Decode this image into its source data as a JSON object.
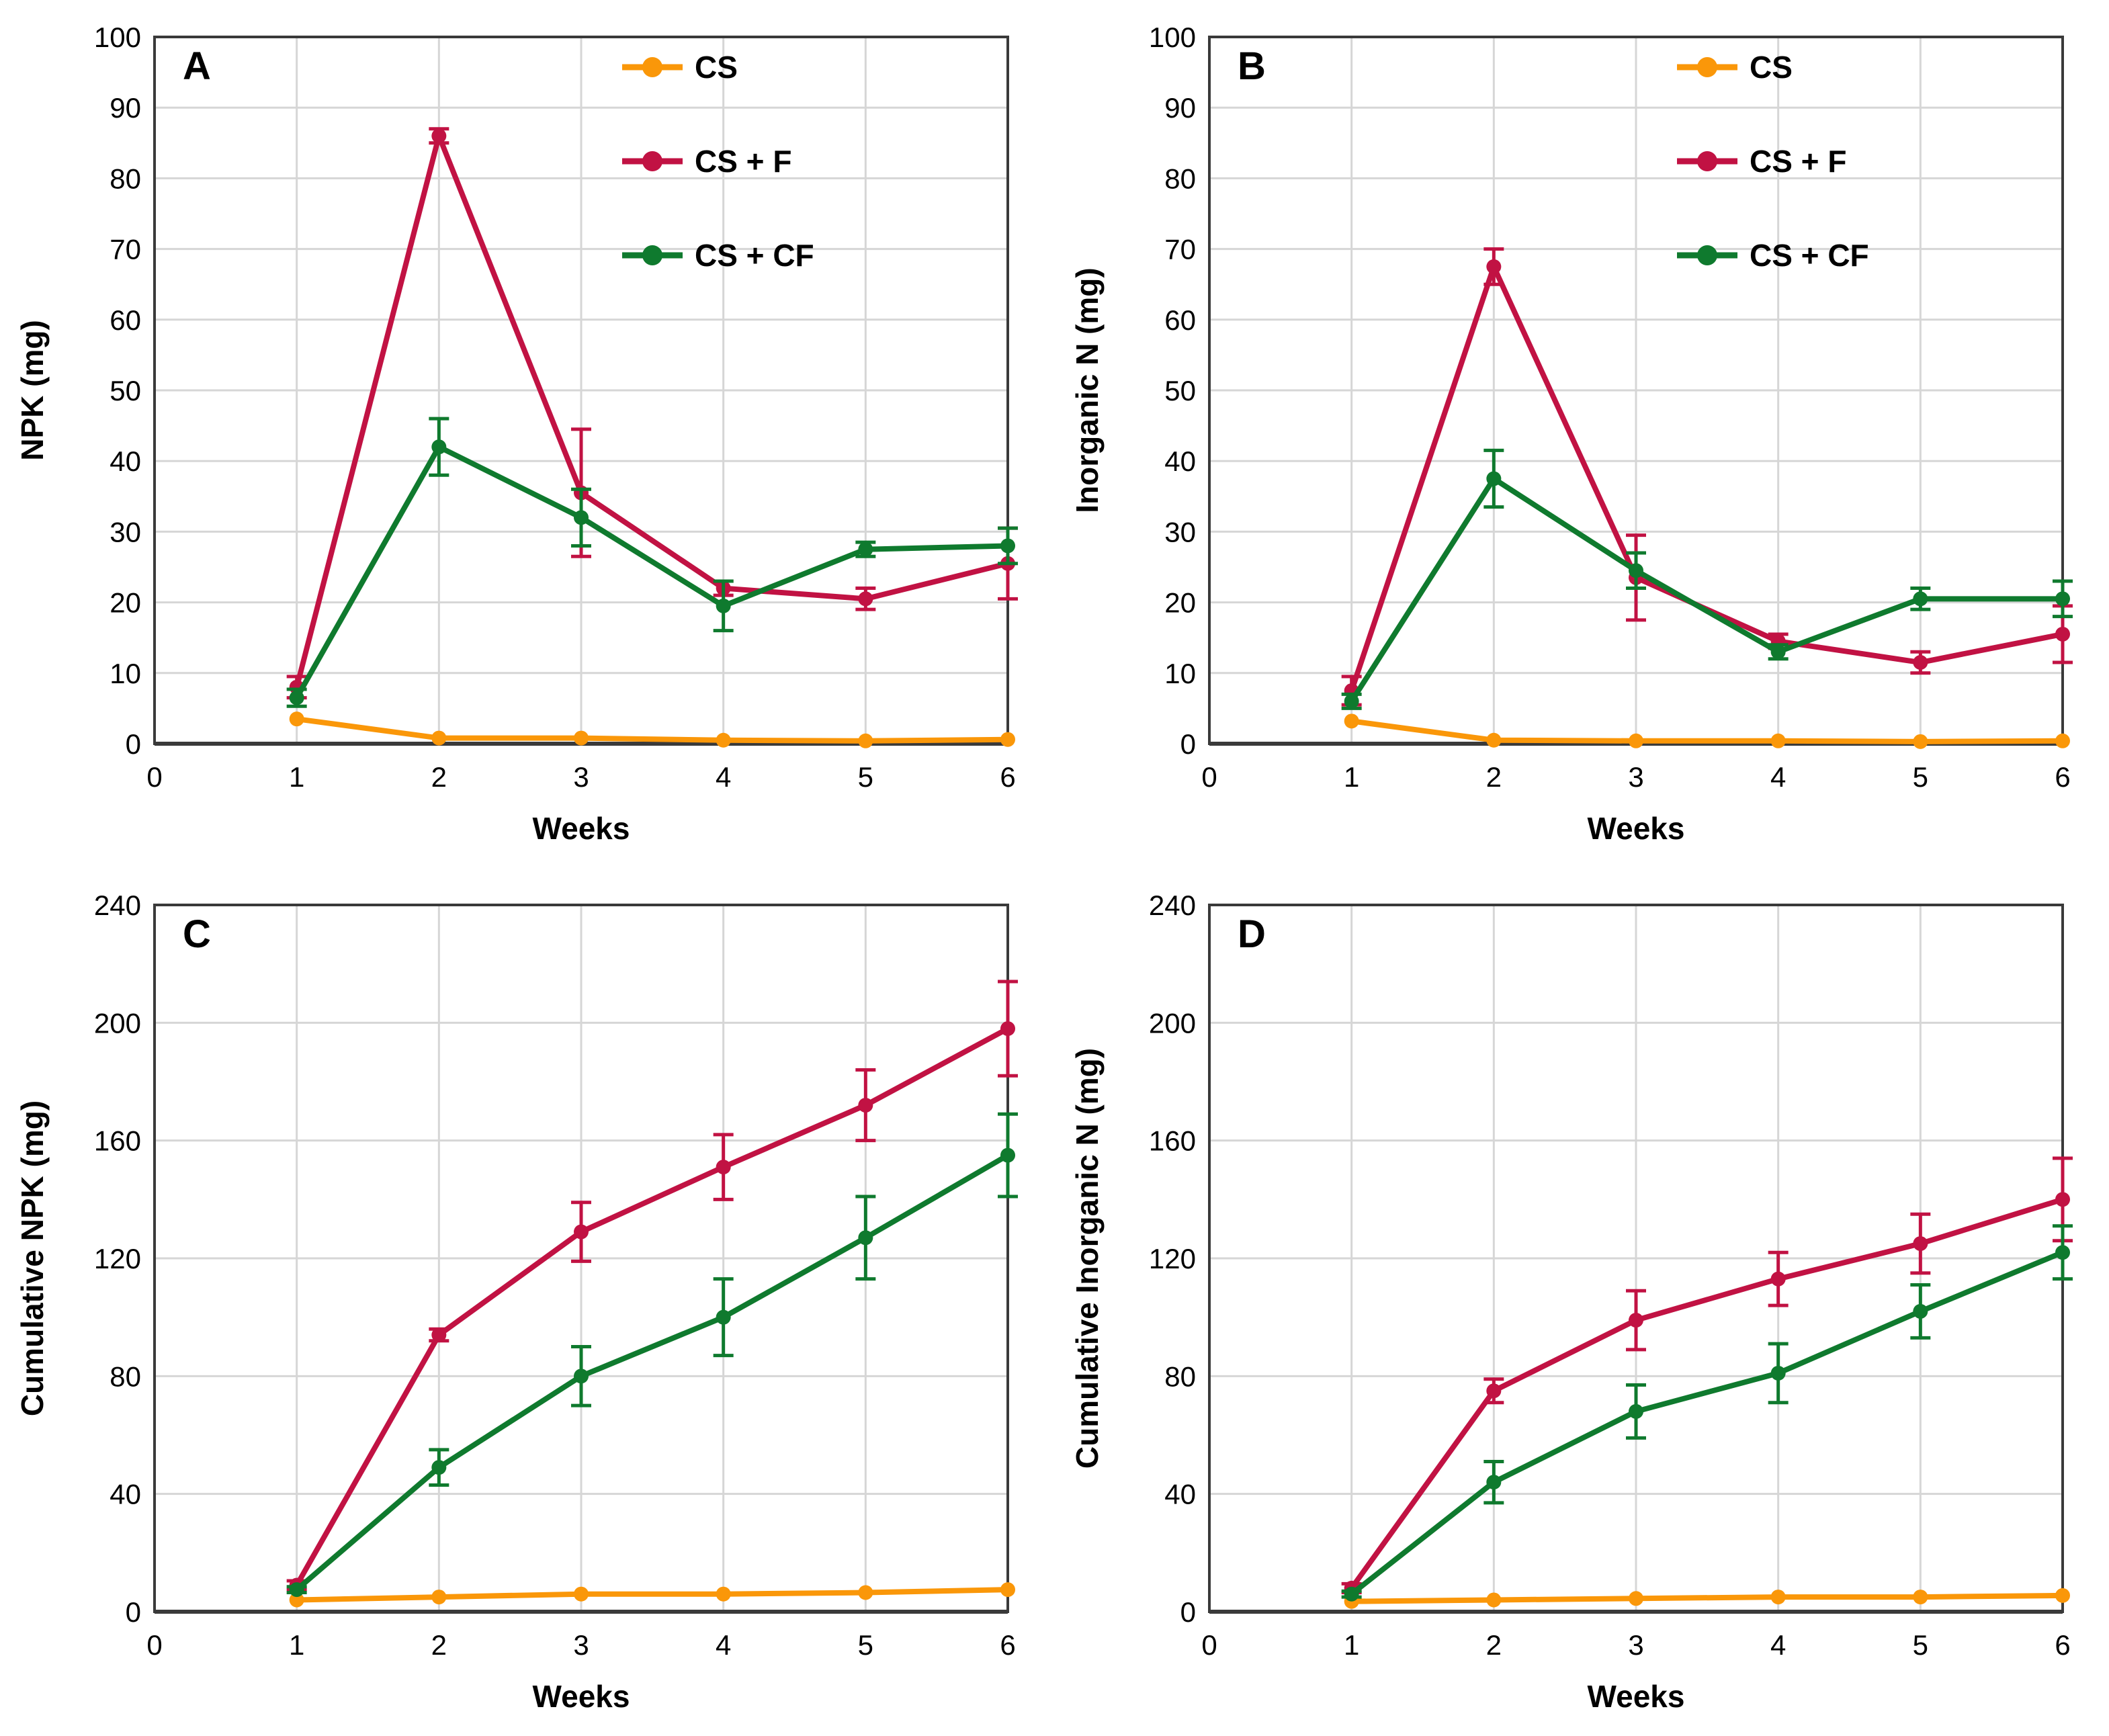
{
  "colors": {
    "background": "#FFFFFF",
    "grid": "#D6D6D6",
    "frame": "#3A3A3A",
    "text": "#000000",
    "cs_orange": "#FA9709",
    "csf_crimson": "#C11243",
    "cscf_green": "#0F7A2E"
  },
  "chart_data": [
    {
      "id": "A",
      "type": "line",
      "panel_label": "A",
      "xlabel": "Weeks",
      "ylabel": "NPK (mg)",
      "xlim": [
        0,
        6
      ],
      "ylim": [
        0,
        100
      ],
      "xticks": [
        0,
        1,
        2,
        3,
        4,
        5,
        6
      ],
      "yticks": [
        0,
        10,
        20,
        30,
        40,
        50,
        60,
        70,
        80,
        90,
        100
      ],
      "grid": true,
      "legend": {
        "show": true,
        "position": "top-right"
      },
      "x": [
        1,
        2,
        3,
        4,
        5,
        6
      ],
      "series": [
        {
          "name": "CS",
          "color": "#FA9709",
          "values": [
            3.5,
            0.8,
            0.8,
            0.5,
            0.4,
            0.6
          ],
          "errors": [
            0.4,
            0.3,
            0.3,
            0.2,
            0.2,
            0.3
          ]
        },
        {
          "name": "CS + F",
          "color": "#C11243",
          "values": [
            8,
            86,
            35.5,
            22,
            20.5,
            25.5
          ],
          "errors": [
            1.5,
            1,
            9,
            1,
            1.5,
            5
          ]
        },
        {
          "name": "CS + CF",
          "color": "#0F7A2E",
          "values": [
            6.5,
            42,
            32,
            19.5,
            27.5,
            28
          ],
          "errors": [
            1.2,
            4,
            4,
            3.5,
            1,
            2.5
          ]
        }
      ]
    },
    {
      "id": "B",
      "type": "line",
      "panel_label": "B",
      "xlabel": "Weeks",
      "ylabel": "Inorganic N (mg)",
      "xlim": [
        0,
        6
      ],
      "ylim": [
        0,
        100
      ],
      "xticks": [
        0,
        1,
        2,
        3,
        4,
        5,
        6
      ],
      "yticks": [
        0,
        10,
        20,
        30,
        40,
        50,
        60,
        70,
        80,
        90,
        100
      ],
      "grid": true,
      "legend": {
        "show": true,
        "position": "top-right"
      },
      "x": [
        1,
        2,
        3,
        4,
        5,
        6
      ],
      "series": [
        {
          "name": "CS",
          "color": "#FA9709",
          "values": [
            3.2,
            0.5,
            0.4,
            0.4,
            0.3,
            0.4
          ],
          "errors": [
            0.4,
            0.2,
            0.2,
            0.2,
            0.2,
            0.2
          ]
        },
        {
          "name": "CS + F",
          "color": "#C11243",
          "values": [
            7.5,
            67.5,
            23.5,
            14.5,
            11.5,
            15.5
          ],
          "errors": [
            2,
            2.5,
            6,
            1,
            1.5,
            4
          ]
        },
        {
          "name": "CS + CF",
          "color": "#0F7A2E",
          "values": [
            6,
            37.5,
            24.5,
            13,
            20.5,
            20.5
          ],
          "errors": [
            1,
            4,
            2.5,
            1,
            1.5,
            2.5
          ]
        }
      ]
    },
    {
      "id": "C",
      "type": "line",
      "panel_label": "C",
      "xlabel": "Weeks",
      "ylabel": "Cumulative NPK (mg)",
      "xlim": [
        0,
        6
      ],
      "ylim": [
        0,
        240
      ],
      "xticks": [
        0,
        1,
        2,
        3,
        4,
        5,
        6
      ],
      "yticks": [
        0,
        40,
        80,
        120,
        160,
        200,
        240
      ],
      "grid": true,
      "legend": {
        "show": false
      },
      "x": [
        1,
        2,
        3,
        4,
        5,
        6
      ],
      "series": [
        {
          "name": "CS",
          "color": "#FA9709",
          "values": [
            4,
            5,
            6,
            6,
            6.5,
            7.5
          ],
          "errors": [
            0.5,
            0.5,
            0.5,
            0.5,
            0.5,
            0.5
          ]
        },
        {
          "name": "CS + F",
          "color": "#C11243",
          "values": [
            9,
            94,
            129,
            151,
            172,
            198
          ],
          "errors": [
            1.5,
            2,
            10,
            11,
            12,
            16
          ]
        },
        {
          "name": "CS + CF",
          "color": "#0F7A2E",
          "values": [
            7.5,
            49,
            80,
            100,
            127,
            155
          ],
          "errors": [
            1,
            6,
            10,
            13,
            14,
            14
          ]
        }
      ]
    },
    {
      "id": "D",
      "type": "line",
      "panel_label": "D",
      "xlabel": "Weeks",
      "ylabel": "Cumulative Inorganic N (mg)",
      "xlim": [
        0,
        6
      ],
      "ylim": [
        0,
        240
      ],
      "xticks": [
        0,
        1,
        2,
        3,
        4,
        5,
        6
      ],
      "yticks": [
        0,
        40,
        80,
        120,
        160,
        200,
        240
      ],
      "grid": true,
      "legend": {
        "show": false
      },
      "x": [
        1,
        2,
        3,
        4,
        5,
        6
      ],
      "series": [
        {
          "name": "CS",
          "color": "#FA9709",
          "values": [
            3.5,
            4,
            4.5,
            5,
            5,
            5.5
          ],
          "errors": [
            0.5,
            0.5,
            0.5,
            0.5,
            0.5,
            0.5
          ]
        },
        {
          "name": "CS + F",
          "color": "#C11243",
          "values": [
            8,
            75,
            99,
            113,
            125,
            140
          ],
          "errors": [
            1.5,
            4,
            10,
            9,
            10,
            14
          ]
        },
        {
          "name": "CS + CF",
          "color": "#0F7A2E",
          "values": [
            6,
            44,
            68,
            81,
            102,
            122
          ],
          "errors": [
            1,
            7,
            9,
            10,
            9,
            9
          ]
        }
      ]
    }
  ]
}
